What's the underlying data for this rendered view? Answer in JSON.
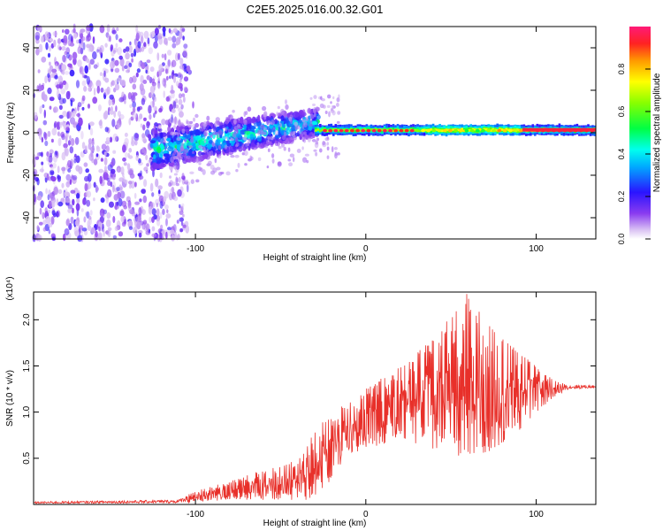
{
  "title": "C2E5.2025.016.00.32.G01",
  "colorbar": {
    "label": "Normalized spectral amplitude",
    "ticks": [
      "0.0",
      "0.2",
      "0.4",
      "0.6",
      "0.8"
    ]
  },
  "chart_data": [
    {
      "type": "heatmap",
      "xlabel": "Height of straight line (km)",
      "ylabel": "Frequency (Hz)",
      "xlim": [
        -195,
        135
      ],
      "ylim": [
        -50,
        50
      ],
      "xticks": [
        "-100",
        "0",
        "100"
      ],
      "yticks": [
        "40",
        "20",
        "0",
        "-20",
        "-40"
      ],
      "zlim": [
        0,
        1
      ],
      "regions": [
        {
          "name": "",
          "x_range": [
            -195,
            -105
          ],
          "freq_range": [
            -50,
            50
          ],
          "amplitude": "scattered 0.05-0.2"
        },
        {
          "name": "",
          "x_range": [
            -125,
            -30
          ],
          "freq_center_start": -8,
          "freq_center_end": 5,
          "amplitude": "0.2-0.45"
        },
        {
          "name": "",
          "x_range": [
            -30,
            135
          ],
          "freq_center": 1,
          "amplitude": "0.2-1.0"
        }
      ]
    },
    {
      "type": "line",
      "xlabel": "Height of straight line (km)",
      "ylabel": "SNR (10 * v/v)",
      "y_multiplier": "(x10⁴)",
      "xlim": [
        -195,
        135
      ],
      "ylim": [
        0,
        2.3
      ],
      "xticks": [
        "-100",
        "0",
        "100"
      ],
      "yticks": [
        "0.5",
        "1.0",
        "1.5",
        "2.0"
      ],
      "color": "#e8302a",
      "series": [
        {
          "name": "",
          "envelope": [
            {
              "x": -195,
              "low": 0.0,
              "high": 0.03
            },
            {
              "x": -110,
              "low": 0.0,
              "high": 0.05
            },
            {
              "x": -100,
              "low": 0.02,
              "high": 0.15
            },
            {
              "x": -80,
              "low": 0.05,
              "high": 0.25
            },
            {
              "x": -60,
              "low": 0.05,
              "high": 0.38
            },
            {
              "x": -45,
              "low": 0.05,
              "high": 0.45
            },
            {
              "x": -35,
              "low": 0.05,
              "high": 0.65
            },
            {
              "x": -25,
              "low": 0.15,
              "high": 0.9
            },
            {
              "x": -15,
              "low": 0.4,
              "high": 1.05
            },
            {
              "x": 0,
              "low": 0.6,
              "high": 1.25
            },
            {
              "x": 20,
              "low": 0.7,
              "high": 1.5
            },
            {
              "x": 40,
              "low": 0.6,
              "high": 1.8
            },
            {
              "x": 60,
              "low": 0.5,
              "high": 2.3
            },
            {
              "x": 80,
              "low": 0.6,
              "high": 1.8
            },
            {
              "x": 100,
              "low": 1.0,
              "high": 1.5
            },
            {
              "x": 110,
              "low": 1.15,
              "high": 1.35
            },
            {
              "x": 118,
              "low": 1.22,
              "high": 1.3
            },
            {
              "x": 135,
              "low": 1.25,
              "high": 1.29
            }
          ]
        }
      ]
    }
  ]
}
